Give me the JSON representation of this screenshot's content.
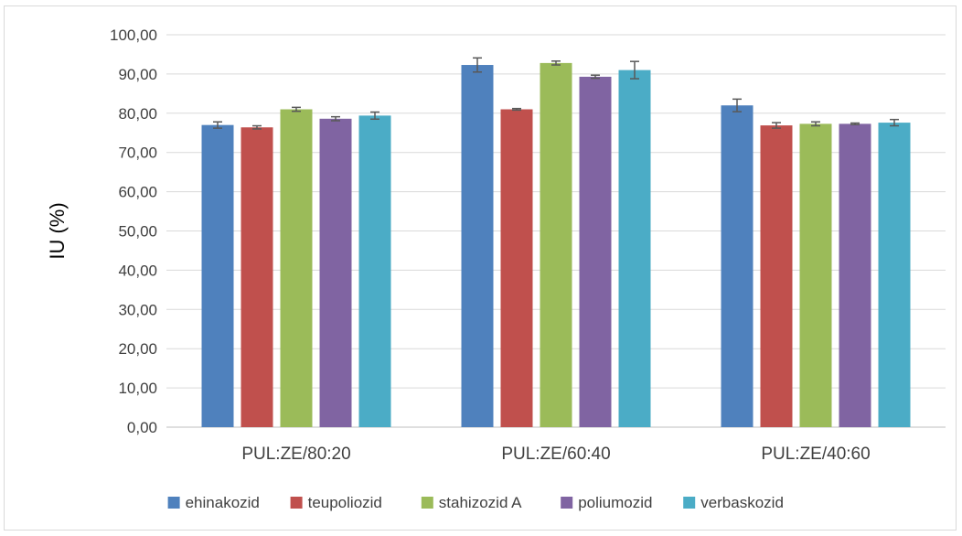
{
  "chart_data": {
    "type": "bar",
    "title": "",
    "xlabel": "",
    "ylabel": "IU (%)",
    "ylim": [
      0,
      100
    ],
    "yticks": [
      "0,00",
      "10,00",
      "20,00",
      "30,00",
      "40,00",
      "50,00",
      "60,00",
      "70,00",
      "80,00",
      "90,00",
      "100,00"
    ],
    "grid": true,
    "legend_position": "bottom",
    "error_bars": true,
    "categories": [
      "PUL:ZE/80:20",
      "PUL:ZE/60:40",
      "PUL:ZE/40:60"
    ],
    "series": [
      {
        "name": "ehinakozid",
        "color": "#4f81bd",
        "values": [
          77.0,
          92.3,
          82.0
        ],
        "errors": [
          0.8,
          1.8,
          1.6
        ]
      },
      {
        "name": "teupoliozid",
        "color": "#c0504d",
        "values": [
          76.4,
          81.0,
          76.9
        ],
        "errors": [
          0.4,
          0.2,
          0.7
        ]
      },
      {
        "name": "stahizozid A",
        "color": "#9bbb59",
        "values": [
          81.0,
          92.8,
          77.3
        ],
        "errors": [
          0.5,
          0.5,
          0.5
        ]
      },
      {
        "name": "poliumozid",
        "color": "#8064a2",
        "values": [
          78.6,
          89.3,
          77.3
        ],
        "errors": [
          0.5,
          0.4,
          0.2
        ]
      },
      {
        "name": "verbaskozid",
        "color": "#4bacc6",
        "values": [
          79.4,
          91.0,
          77.6
        ],
        "errors": [
          0.9,
          2.2,
          0.8
        ]
      }
    ]
  }
}
